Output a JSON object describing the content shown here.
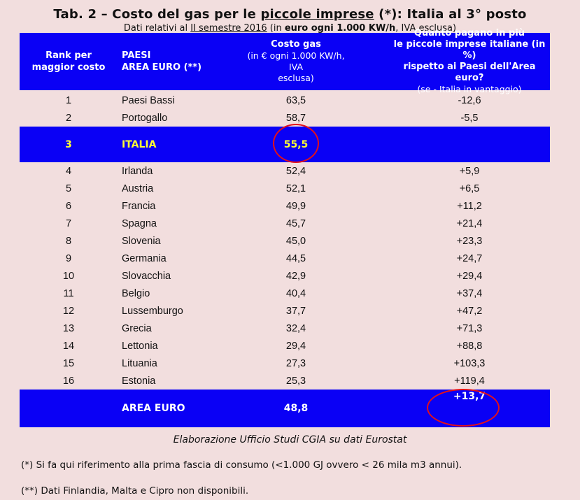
{
  "title": {
    "prefix": "Tab. 2 – Costo del gas per le ",
    "underlined": "piccole imprese",
    "suffix": " (*): Italia al 3° posto"
  },
  "subtitle": {
    "part1": "Dati relativi al ",
    "part_underlined": "II semestre 2016",
    "part2": " (in ",
    "bold": "euro ogni 1.000 KW/h",
    "part3": ", IVA esclusa)"
  },
  "header": {
    "rank_line1": "Rank per",
    "rank_line2": "maggior costo",
    "name_line1": "PAESI",
    "name_line2": "AREA EURO (**)",
    "cost_title": "Costo gas",
    "cost_line2": "(in € ogni 1.000 KW/h, IVA",
    "cost_line3": "esclusa)",
    "diff_line1": "Quanto pagano in più",
    "diff_line2": "le piccole imprese italiane (in %)",
    "diff_line3": "rispetto ai Paesi dell'Area euro?",
    "diff_line4": "(se - Italia in vantaggio)"
  },
  "rows_top": [
    {
      "rank": "1",
      "country": "Paesi Bassi",
      "cost": "63,5",
      "diff": "-12,6"
    },
    {
      "rank": "2",
      "country": "Portogallo",
      "cost": "58,7",
      "diff": "-5,5"
    }
  ],
  "italia": {
    "rank": "3",
    "country": "ITALIA",
    "cost": "55,5",
    "diff": ""
  },
  "rows_bottom": [
    {
      "rank": "4",
      "country": "Irlanda",
      "cost": "52,4",
      "diff": "+5,9"
    },
    {
      "rank": "5",
      "country": "Austria",
      "cost": "52,1",
      "diff": "+6,5"
    },
    {
      "rank": "6",
      "country": "Francia",
      "cost": "49,9",
      "diff": "+11,2"
    },
    {
      "rank": "7",
      "country": "Spagna",
      "cost": "45,7",
      "diff": "+21,4"
    },
    {
      "rank": "8",
      "country": "Slovenia",
      "cost": "45,0",
      "diff": "+23,3"
    },
    {
      "rank": "9",
      "country": "Germania",
      "cost": "44,5",
      "diff": "+24,7"
    },
    {
      "rank": "10",
      "country": "Slovacchia",
      "cost": "42,9",
      "diff": "+29,4"
    },
    {
      "rank": "11",
      "country": "Belgio",
      "cost": "40,4",
      "diff": "+37,4"
    },
    {
      "rank": "12",
      "country": "Lussemburgo",
      "cost": "37,7",
      "diff": "+47,2"
    },
    {
      "rank": "13",
      "country": "Grecia",
      "cost": "32,4",
      "diff": "+71,3"
    },
    {
      "rank": "14",
      "country": "Lettonia",
      "cost": "29,4",
      "diff": "+88,8"
    },
    {
      "rank": "15",
      "country": "Lituania",
      "cost": "27,3",
      "diff": "+103,3"
    },
    {
      "rank": "16",
      "country": "Estonia",
      "cost": "25,3",
      "diff": "+119,4"
    }
  ],
  "total": {
    "country": "AREA EURO",
    "cost": "48,8",
    "diff": "+13,7"
  },
  "source": "Elaborazione Ufficio Studi CGIA su dati Eurostat",
  "notes": [
    "(*) Si fa qui riferimento alla prima fascia di consumo (<1.000 GJ ovvero < 26 mila m3 annui).",
    "(**) Dati Finlandia, Malta e Cipro non disponibili."
  ],
  "colors": {
    "background": "#f2dede",
    "highlight_band": "#0a00f5",
    "italia_text": "#ffff33",
    "circle": "#e3101a"
  }
}
